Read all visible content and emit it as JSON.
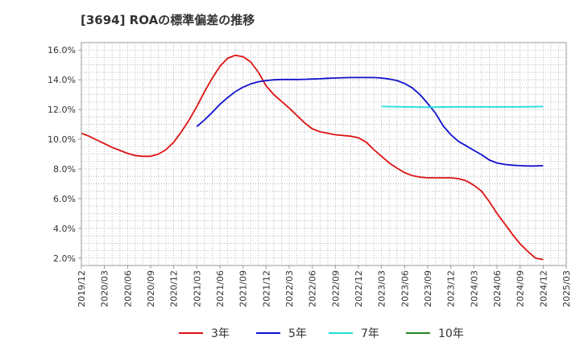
{
  "chart_data": {
    "type": "line",
    "title": "[3694]  ROAの標準偏差の推移",
    "x_ticks": [
      "2019/12",
      "2020/03",
      "2020/06",
      "2020/09",
      "2020/12",
      "2021/03",
      "2021/06",
      "2021/09",
      "2021/12",
      "2022/03",
      "2022/06",
      "2022/09",
      "2022/12",
      "2023/03",
      "2023/06",
      "2023/09",
      "2023/12",
      "2024/03",
      "2024/06",
      "2024/09",
      "2024/12",
      "2025/03"
    ],
    "y_ticks": [
      "2.0%",
      "4.0%",
      "6.0%",
      "8.0%",
      "10.0%",
      "12.0%",
      "14.0%",
      "16.0%"
    ],
    "ylim": [
      1.5,
      16.5
    ],
    "grid": true,
    "legend_position": "bottom",
    "colors": {
      "3年": "#dd1111",
      "5年": "#1111cc",
      "7年": "#22dddd",
      "10年": "#228822"
    },
    "series": [
      {
        "name": "3年",
        "x": [
          "2019/12",
          "2020/01",
          "2020/02",
          "2020/03",
          "2020/04",
          "2020/05",
          "2020/06",
          "2020/07",
          "2020/08",
          "2020/09",
          "2020/10",
          "2020/11",
          "2020/12",
          "2021/01",
          "2021/02",
          "2021/03",
          "2021/04",
          "2021/05",
          "2021/06",
          "2021/07",
          "2021/08",
          "2021/09",
          "2021/10",
          "2021/11",
          "2021/12",
          "2022/01",
          "2022/02",
          "2022/03",
          "2022/04",
          "2022/05",
          "2022/06",
          "2022/07",
          "2022/08",
          "2022/09",
          "2022/10",
          "2022/11",
          "2022/12",
          "2023/01",
          "2023/02",
          "2023/03",
          "2023/04",
          "2023/05",
          "2023/06",
          "2023/07",
          "2023/08",
          "2023/09",
          "2023/10",
          "2023/11",
          "2023/12",
          "2024/01",
          "2024/02",
          "2024/03",
          "2024/04",
          "2024/05",
          "2024/06",
          "2024/07",
          "2024/08",
          "2024/09",
          "2024/10",
          "2024/11",
          "2024/12"
        ],
        "values": [
          10.4,
          10.2,
          9.95,
          9.7,
          9.45,
          9.25,
          9.05,
          8.9,
          8.85,
          8.85,
          9.0,
          9.3,
          9.8,
          10.5,
          11.3,
          12.2,
          13.2,
          14.1,
          14.9,
          15.45,
          15.65,
          15.55,
          15.2,
          14.5,
          13.6,
          13.0,
          12.55,
          12.1,
          11.6,
          11.1,
          10.7,
          10.5,
          10.4,
          10.3,
          10.25,
          10.2,
          10.1,
          9.8,
          9.3,
          8.85,
          8.4,
          8.05,
          7.75,
          7.55,
          7.45,
          7.4,
          7.4,
          7.4,
          7.4,
          7.35,
          7.2,
          6.9,
          6.5,
          5.8,
          5.0,
          4.3,
          3.6,
          2.95,
          2.45,
          2.0,
          1.9
        ]
      },
      {
        "name": "5年",
        "x": [
          "2021/03",
          "2021/04",
          "2021/05",
          "2021/06",
          "2021/07",
          "2021/08",
          "2021/09",
          "2021/10",
          "2021/11",
          "2021/12",
          "2022/01",
          "2022/02",
          "2022/03",
          "2022/04",
          "2022/05",
          "2022/06",
          "2022/07",
          "2022/08",
          "2022/09",
          "2022/10",
          "2022/11",
          "2022/12",
          "2023/01",
          "2023/02",
          "2023/03",
          "2023/04",
          "2023/05",
          "2023/06",
          "2023/07",
          "2023/08",
          "2023/09",
          "2023/10",
          "2023/11",
          "2023/12",
          "2024/01",
          "2024/02",
          "2024/03",
          "2024/04",
          "2024/05",
          "2024/06",
          "2024/07",
          "2024/08",
          "2024/09",
          "2024/10",
          "2024/11",
          "2024/12"
        ],
        "values": [
          10.85,
          11.3,
          11.8,
          12.35,
          12.8,
          13.2,
          13.5,
          13.72,
          13.87,
          13.95,
          14.0,
          14.02,
          14.02,
          14.02,
          14.03,
          14.05,
          14.07,
          14.1,
          14.12,
          14.14,
          14.15,
          14.15,
          14.15,
          14.15,
          14.12,
          14.05,
          13.95,
          13.75,
          13.45,
          13.0,
          12.4,
          11.75,
          10.9,
          10.3,
          9.85,
          9.55,
          9.25,
          8.95,
          8.6,
          8.4,
          8.3,
          8.25,
          8.22,
          8.2,
          8.2,
          8.22
        ]
      },
      {
        "name": "7年",
        "x": [
          "2023/03",
          "2023/06",
          "2023/09",
          "2023/12",
          "2024/03",
          "2024/06",
          "2024/09",
          "2024/12"
        ],
        "values": [
          12.2,
          12.18,
          12.15,
          12.18,
          12.18,
          12.18,
          12.18,
          12.2
        ]
      },
      {
        "name": "10年",
        "x": [],
        "values": []
      }
    ]
  },
  "legend": [
    {
      "label": "3年",
      "color": "#dd1111"
    },
    {
      "label": "5年",
      "color": "#1111cc"
    },
    {
      "label": "7年",
      "color": "#22dddd"
    },
    {
      "label": "10年",
      "color": "#228822"
    }
  ]
}
